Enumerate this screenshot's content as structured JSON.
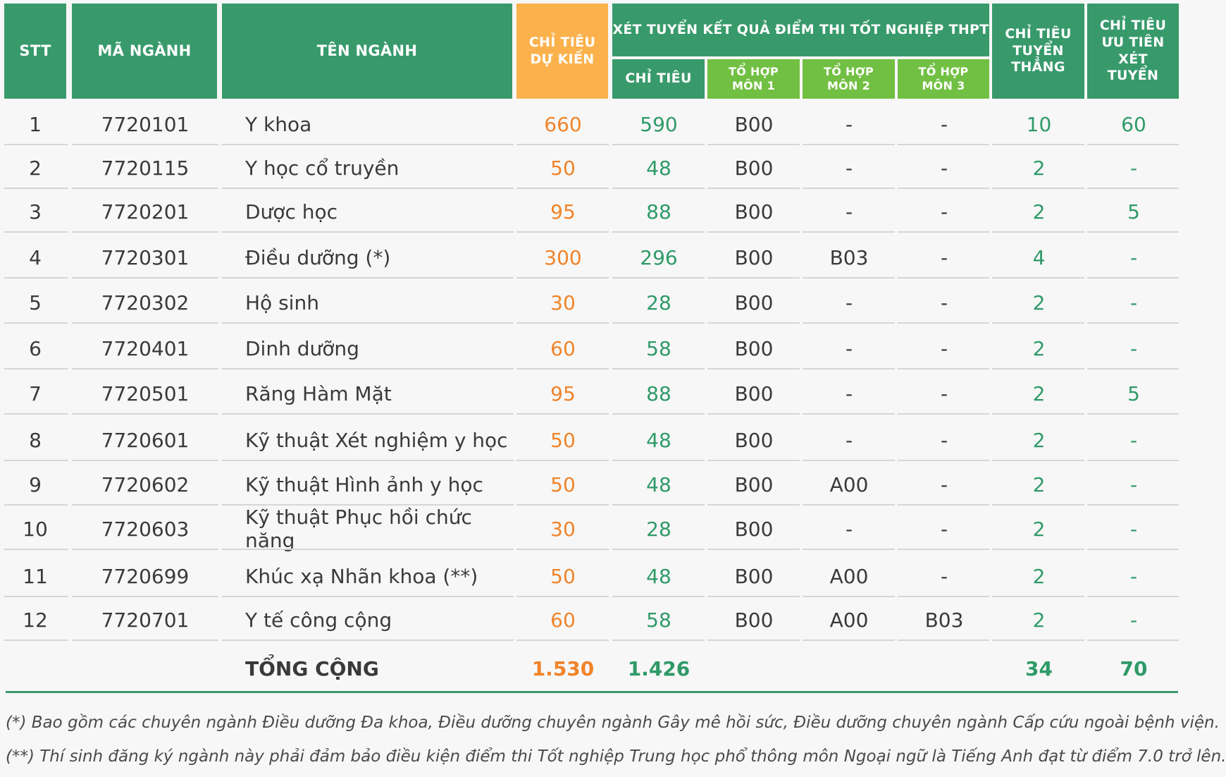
{
  "headers": {
    "stt": "STT",
    "ma_nganh": "MÃ NGÀNH",
    "ten_nganh": "TÊN NGÀNH",
    "chi_tieu_du_kien": "CHỈ TIÊU DỰ KIẾN",
    "xet_tuyen": "XÉT TUYỂN KẾT QUẢ ĐIỂM  THI TỐT NGHIỆP THPT",
    "chi_tieu": "CHỈ TIÊU",
    "to_hop_1": "TỔ HỢP MÔN 1",
    "to_hop_2": "TỔ HỢP MÔN 2",
    "to_hop_3": "TỔ HỢP MÔN 3",
    "tuyen_thang": "CHỈ TIÊU TUYỂN THẲNG",
    "uu_tien": "CHỈ TIÊU ƯU TIÊN XÉT TUYỂN"
  },
  "rows": [
    {
      "stt": "1",
      "ma": "7720101",
      "ten": "Y khoa",
      "dukien": "660",
      "chitieu": "590",
      "th1": "B00",
      "th2": "-",
      "th3": "-",
      "thang": "10",
      "uutien": "60"
    },
    {
      "stt": "2",
      "ma": "7720115",
      "ten": "Y học cổ truyền",
      "dukien": "50",
      "chitieu": "48",
      "th1": "B00",
      "th2": "-",
      "th3": "-",
      "thang": "2",
      "uutien": "-"
    },
    {
      "stt": "3",
      "ma": "7720201",
      "ten": "Dược học",
      "dukien": "95",
      "chitieu": "88",
      "th1": "B00",
      "th2": "-",
      "th3": "-",
      "thang": "2",
      "uutien": "5"
    },
    {
      "stt": "4",
      "ma": "7720301",
      "ten": "Điều dưỡng (*)",
      "dukien": "300",
      "chitieu": "296",
      "th1": "B00",
      "th2": "B03",
      "th3": "-",
      "thang": "4",
      "uutien": "-"
    },
    {
      "stt": "5",
      "ma": "7720302",
      "ten": "Hộ sinh",
      "dukien": "30",
      "chitieu": "28",
      "th1": "B00",
      "th2": "-",
      "th3": "-",
      "thang": "2",
      "uutien": "-"
    },
    {
      "stt": "6",
      "ma": "7720401",
      "ten": "Dinh dưỡng",
      "dukien": "60",
      "chitieu": "58",
      "th1": "B00",
      "th2": "-",
      "th3": "-",
      "thang": "2",
      "uutien": "-"
    },
    {
      "stt": "7",
      "ma": "7720501",
      "ten": "Răng Hàm Mặt",
      "dukien": "95",
      "chitieu": "88",
      "th1": "B00",
      "th2": "-",
      "th3": "-",
      "thang": "2",
      "uutien": "5"
    },
    {
      "stt": "8",
      "ma": "7720601",
      "ten": "Kỹ thuật Xét nghiệm y học",
      "dukien": "50",
      "chitieu": "48",
      "th1": "B00",
      "th2": "-",
      "th3": "-",
      "thang": "2",
      "uutien": "-"
    },
    {
      "stt": "9",
      "ma": "7720602",
      "ten": "Kỹ thuật Hình ảnh y học",
      "dukien": "50",
      "chitieu": "48",
      "th1": "B00",
      "th2": "A00",
      "th3": "-",
      "thang": "2",
      "uutien": "-"
    },
    {
      "stt": "10",
      "ma": "7720603",
      "ten": "Kỹ thuật Phục hồi chức năng",
      "dukien": "30",
      "chitieu": "28",
      "th1": "B00",
      "th2": "-",
      "th3": "-",
      "thang": "2",
      "uutien": "-"
    },
    {
      "stt": "11",
      "ma": "7720699",
      "ten": "Khúc xạ Nhãn khoa (**)",
      "dukien": "50",
      "chitieu": "48",
      "th1": "B00",
      "th2": "A00",
      "th3": "-",
      "thang": "2",
      "uutien": "-"
    },
    {
      "stt": "12",
      "ma": "7720701",
      "ten": "Y tế công cộng",
      "dukien": "60",
      "chitieu": "58",
      "th1": "B00",
      "th2": "A00",
      "th3": "B03",
      "thang": "2",
      "uutien": "-"
    }
  ],
  "total": {
    "label": "TỔNG CỘNG",
    "dukien": "1.530",
    "chitieu": "1.426",
    "thang": "34",
    "uutien": "70"
  },
  "footnotes": [
    "(*) Bao gồm các chuyên ngành Điều dưỡng Đa khoa, Điều dưỡng chuyên ngành Gây mê hồi sức, Điều dưỡng chuyên ngành Cấp cứu ngoài bệnh viện.",
    "(**) Thí sinh đăng ký ngành này phải đảm bảo điều kiện điểm thi Tốt nghiệp Trung học phổ thông môn Ngoại ngữ là Tiếng Anh đạt từ điểm 7.0 trở lên."
  ],
  "colors": {
    "header_green": "#389a6b",
    "sub_green": "#72c043",
    "header_orange": "#fbb24d",
    "value_orange": "#f0842a",
    "value_green": "#2f9a68"
  }
}
